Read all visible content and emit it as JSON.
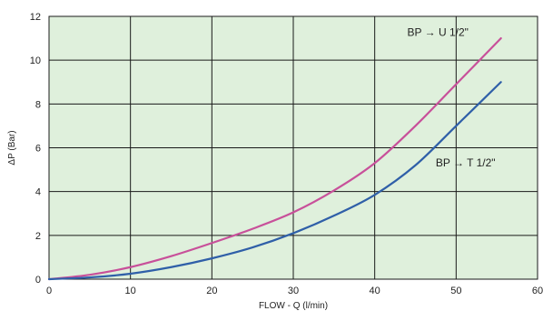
{
  "chart_data": {
    "type": "line",
    "title": "",
    "xlabel": "FLOW - Q (l/min)",
    "ylabel": "ΔP (Bar)",
    "xlim": [
      0,
      60
    ],
    "ylim": [
      0,
      12
    ],
    "xticks": [
      0,
      10,
      20,
      30,
      40,
      50,
      60
    ],
    "yticks": [
      0,
      2,
      4,
      6,
      8,
      10,
      12
    ],
    "grid": true,
    "background_color": "#dff0dc",
    "series": [
      {
        "name": "BP → U 1/2\"",
        "color": "#c8509a",
        "x": [
          0,
          5,
          10,
          15,
          20,
          25,
          30,
          35,
          40,
          45,
          50,
          55.5
        ],
        "y": [
          0,
          0.2,
          0.55,
          1.05,
          1.65,
          2.3,
          3.05,
          4.05,
          5.3,
          7.0,
          8.9,
          11.0
        ]
      },
      {
        "name": "BP → T 1/2\"",
        "color": "#2f5fa8",
        "x": [
          0,
          5,
          10,
          15,
          20,
          25,
          30,
          35,
          40,
          45,
          50,
          55.5
        ],
        "y": [
          0,
          0.08,
          0.25,
          0.55,
          0.95,
          1.45,
          2.1,
          2.9,
          3.85,
          5.2,
          7.0,
          9.0
        ]
      }
    ],
    "annotations": [
      {
        "text": "BP → U 1/2\"",
        "x": 44,
        "y": 11.1
      },
      {
        "text": "BP → T 1/2\"",
        "x": 47.5,
        "y": 5.15
      }
    ]
  }
}
